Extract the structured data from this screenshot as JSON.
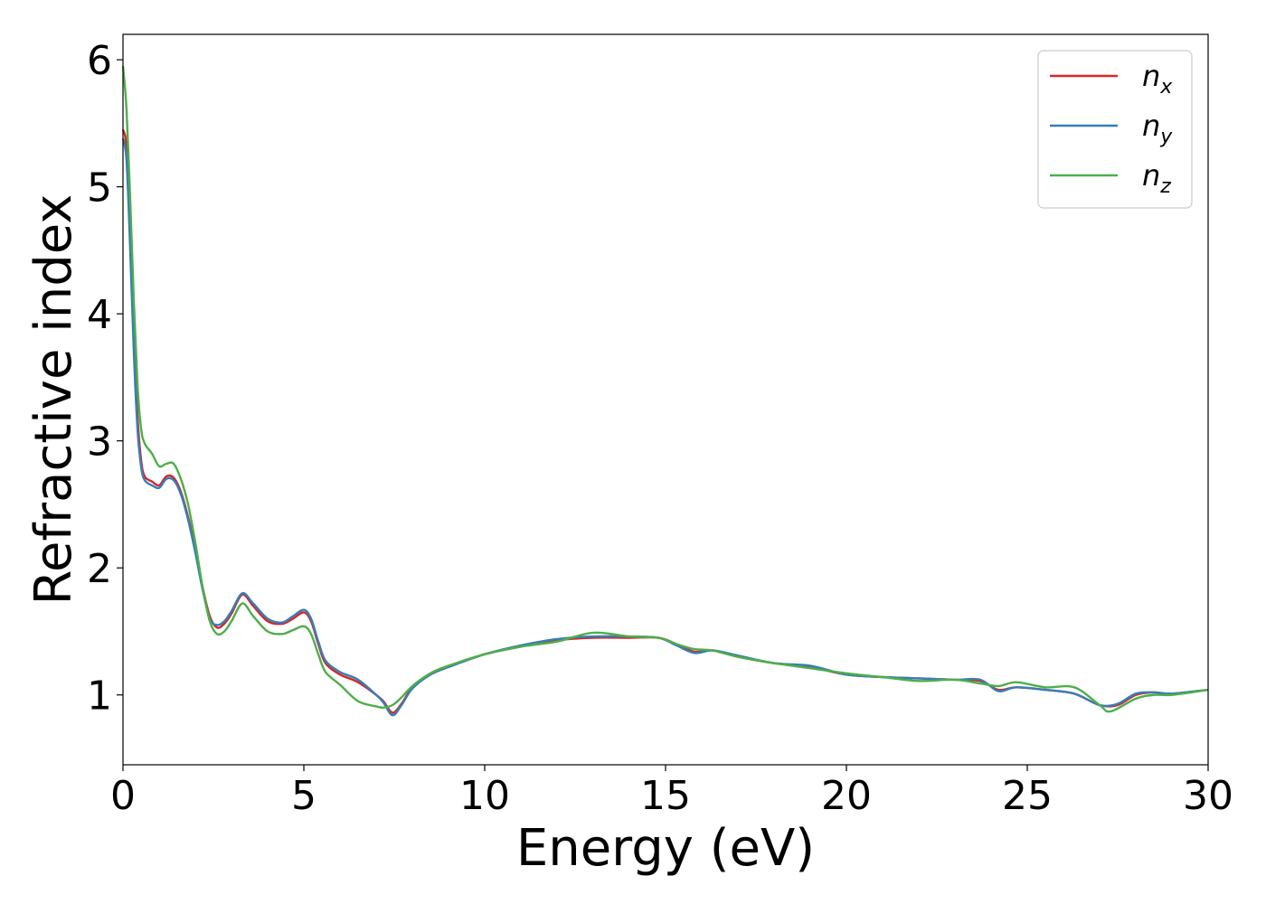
{
  "chart_data": {
    "type": "line",
    "title": "",
    "xlabel": "Energy (eV)",
    "ylabel": "Refractive index",
    "xlim": [
      0,
      30
    ],
    "ylim": [
      0.45,
      6.2
    ],
    "xticks": [
      0,
      5,
      10,
      15,
      20,
      25,
      30
    ],
    "yticks": [
      1,
      2,
      3,
      4,
      5,
      6
    ],
    "grid": false,
    "legend_position": "top-right",
    "series": [
      {
        "name": "n",
        "subscript": "x",
        "color": "#d62728",
        "x": [
          0,
          0.1,
          0.2,
          0.3,
          0.4,
          0.5,
          0.6,
          0.8,
          1.0,
          1.2,
          1.4,
          1.6,
          1.8,
          2.0,
          2.2,
          2.4,
          2.6,
          2.8,
          3.0,
          3.3,
          3.6,
          4.0,
          4.4,
          4.7,
          5.0,
          5.2,
          5.4,
          5.6,
          6.0,
          6.5,
          7.0,
          7.2,
          7.45,
          7.7,
          8.0,
          8.5,
          9.0,
          10.0,
          11.0,
          12.0,
          13.0,
          14.0,
          14.8,
          15.3,
          15.8,
          16.3,
          17.0,
          18.0,
          19.0,
          20.0,
          21.0,
          22.0,
          23.0,
          23.7,
          24.2,
          24.7,
          25.5,
          26.3,
          27.0,
          27.5,
          28.0,
          28.5,
          29.0,
          30.0
        ],
        "y": [
          5.45,
          5.3,
          4.6,
          3.8,
          3.2,
          2.85,
          2.72,
          2.68,
          2.65,
          2.72,
          2.71,
          2.6,
          2.4,
          2.15,
          1.85,
          1.62,
          1.53,
          1.56,
          1.64,
          1.79,
          1.7,
          1.58,
          1.56,
          1.6,
          1.65,
          1.58,
          1.4,
          1.25,
          1.16,
          1.1,
          1.0,
          0.95,
          0.86,
          0.93,
          1.06,
          1.16,
          1.22,
          1.32,
          1.38,
          1.43,
          1.45,
          1.45,
          1.45,
          1.4,
          1.34,
          1.35,
          1.3,
          1.25,
          1.22,
          1.16,
          1.14,
          1.13,
          1.12,
          1.11,
          1.04,
          1.06,
          1.04,
          1.01,
          0.92,
          0.92,
          1.0,
          1.02,
          1.01,
          1.04
        ]
      },
      {
        "name": "n",
        "subscript": "y",
        "color": "#377eb8",
        "x": [
          0,
          0.1,
          0.2,
          0.3,
          0.4,
          0.5,
          0.6,
          0.8,
          1.0,
          1.2,
          1.4,
          1.6,
          1.8,
          2.0,
          2.2,
          2.4,
          2.6,
          2.8,
          3.0,
          3.3,
          3.6,
          4.0,
          4.4,
          4.7,
          5.0,
          5.2,
          5.4,
          5.6,
          6.0,
          6.5,
          7.0,
          7.2,
          7.45,
          7.7,
          8.0,
          8.5,
          9.0,
          10.0,
          11.0,
          12.0,
          13.0,
          14.0,
          14.8,
          15.3,
          15.8,
          16.3,
          17.0,
          18.0,
          19.0,
          20.0,
          21.0,
          22.0,
          23.0,
          23.7,
          24.2,
          24.7,
          25.5,
          26.3,
          27.0,
          27.5,
          28.0,
          28.5,
          29.0,
          30.0
        ],
        "y": [
          5.38,
          5.2,
          4.5,
          3.7,
          3.1,
          2.8,
          2.69,
          2.65,
          2.63,
          2.7,
          2.69,
          2.58,
          2.38,
          2.12,
          1.83,
          1.6,
          1.55,
          1.58,
          1.66,
          1.8,
          1.72,
          1.6,
          1.57,
          1.62,
          1.67,
          1.6,
          1.42,
          1.27,
          1.18,
          1.12,
          1.0,
          0.94,
          0.84,
          0.92,
          1.05,
          1.16,
          1.22,
          1.32,
          1.39,
          1.44,
          1.46,
          1.46,
          1.45,
          1.39,
          1.33,
          1.35,
          1.31,
          1.25,
          1.23,
          1.16,
          1.14,
          1.13,
          1.12,
          1.12,
          1.03,
          1.06,
          1.04,
          1.01,
          0.92,
          0.93,
          1.01,
          1.02,
          1.01,
          1.04
        ]
      },
      {
        "name": "n",
        "subscript": "z",
        "color": "#4daf4a",
        "x": [
          0,
          0.1,
          0.2,
          0.3,
          0.4,
          0.5,
          0.6,
          0.8,
          1.0,
          1.2,
          1.4,
          1.6,
          1.8,
          2.0,
          2.2,
          2.4,
          2.6,
          2.8,
          3.0,
          3.3,
          3.6,
          4.0,
          4.4,
          4.7,
          5.0,
          5.2,
          5.4,
          5.6,
          6.0,
          6.5,
          7.0,
          7.2,
          7.45,
          7.7,
          8.0,
          8.5,
          9.0,
          10.0,
          11.0,
          12.0,
          13.0,
          14.0,
          14.8,
          15.3,
          15.8,
          16.3,
          17.0,
          18.0,
          19.0,
          20.0,
          21.0,
          22.0,
          23.0,
          23.7,
          24.2,
          24.7,
          25.5,
          26.3,
          27.0,
          27.3,
          28.0,
          28.5,
          29.0,
          30.0
        ],
        "y": [
          5.95,
          5.6,
          4.9,
          4.1,
          3.45,
          3.1,
          2.98,
          2.9,
          2.8,
          2.82,
          2.82,
          2.7,
          2.5,
          2.2,
          1.85,
          1.58,
          1.48,
          1.5,
          1.58,
          1.72,
          1.62,
          1.5,
          1.48,
          1.51,
          1.54,
          1.48,
          1.32,
          1.18,
          1.08,
          0.95,
          0.91,
          0.9,
          0.92,
          0.98,
          1.07,
          1.17,
          1.23,
          1.32,
          1.38,
          1.42,
          1.49,
          1.46,
          1.45,
          1.4,
          1.36,
          1.35,
          1.3,
          1.25,
          1.21,
          1.17,
          1.14,
          1.11,
          1.12,
          1.09,
          1.07,
          1.1,
          1.06,
          1.06,
          0.92,
          0.87,
          0.97,
          1.0,
          1.0,
          1.04
        ]
      }
    ]
  }
}
